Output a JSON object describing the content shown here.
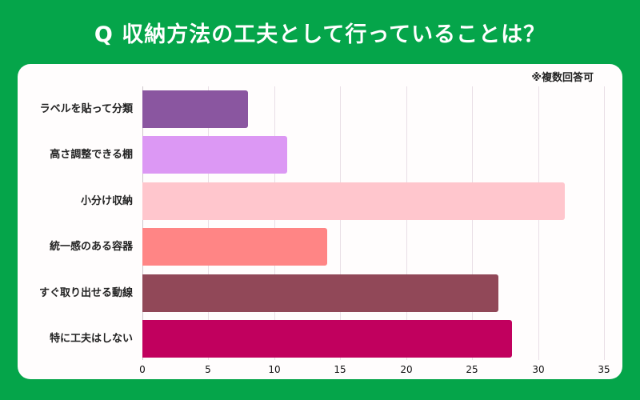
{
  "title": "Q 収納方法の工夫として行っていることは？",
  "note": "※複数回答可",
  "colors": {
    "background": "#05a54a",
    "card": "#fffdfd"
  },
  "chart_data": {
    "type": "bar",
    "orientation": "horizontal",
    "title": "Q 収納方法の工夫として行っていることは？",
    "annotation": "※複数回答可",
    "categories": [
      "ラベルを貼って分類",
      "高さ調整できる棚",
      "小分け収納",
      "統一感のある容器",
      "すぐ取り出せる動線",
      "特に工夫はしない"
    ],
    "values": [
      8,
      11,
      32,
      14,
      27,
      28
    ],
    "colors": [
      "#8a56a0",
      "#dc98f4",
      "#ffc6cd",
      "#ff8585",
      "#914858",
      "#c1005e"
    ],
    "xlabel": "",
    "ylabel": "",
    "xlim": [
      0,
      35
    ],
    "xticks": [
      "0",
      "5",
      "10",
      "15",
      "20",
      "25",
      "30",
      "35"
    ],
    "grid": true,
    "legend": "none"
  }
}
